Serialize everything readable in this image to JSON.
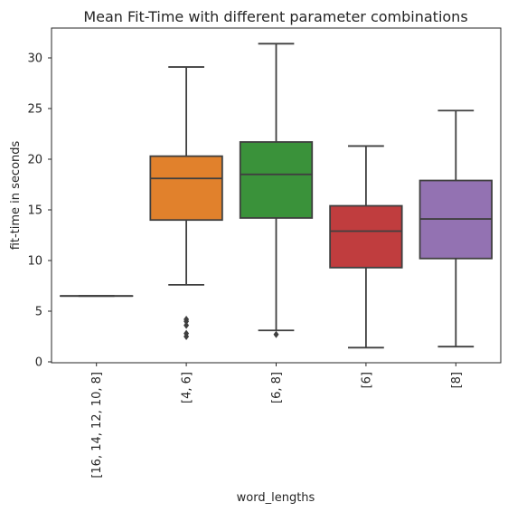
{
  "chart_data": {
    "type": "box",
    "title": "Mean Fit-Time with different parameter combinations",
    "xlabel": "word_lengths",
    "ylabel": "fit-time in seconds",
    "ylim": [
      0,
      33
    ],
    "yticks": [
      0,
      5,
      10,
      15,
      20,
      25,
      30
    ],
    "grid": false,
    "categories": [
      "[16, 14, 12, 10, 8]",
      "[4, 6]",
      "[6, 8]",
      "[6]",
      "[8]"
    ],
    "boxes": [
      {
        "category": "[16, 14, 12, 10, 8]",
        "color": "#3274a1",
        "whisker_low": 6.5,
        "q1": 6.5,
        "median": 6.5,
        "q3": 6.5,
        "whisker_high": 6.5,
        "outliers": []
      },
      {
        "category": "[4, 6]",
        "color": "#e1812c",
        "whisker_low": 7.6,
        "q1": 14.0,
        "median": 18.1,
        "q3": 20.3,
        "whisker_high": 29.1,
        "outliers": [
          2.5,
          2.8,
          3.6,
          4.0,
          4.2
        ]
      },
      {
        "category": "[6, 8]",
        "color": "#3a923a",
        "whisker_low": 3.1,
        "q1": 14.2,
        "median": 18.5,
        "q3": 21.7,
        "whisker_high": 31.4,
        "outliers": [
          2.7
        ]
      },
      {
        "category": "[6]",
        "color": "#c03d3e",
        "whisker_low": 1.4,
        "q1": 9.3,
        "median": 12.9,
        "q3": 15.4,
        "whisker_high": 21.3,
        "outliers": []
      },
      {
        "category": "[8]",
        "color": "#9372b2",
        "whisker_low": 1.5,
        "q1": 10.2,
        "median": 14.1,
        "q3": 17.9,
        "whisker_high": 24.8,
        "outliers": []
      }
    ]
  }
}
